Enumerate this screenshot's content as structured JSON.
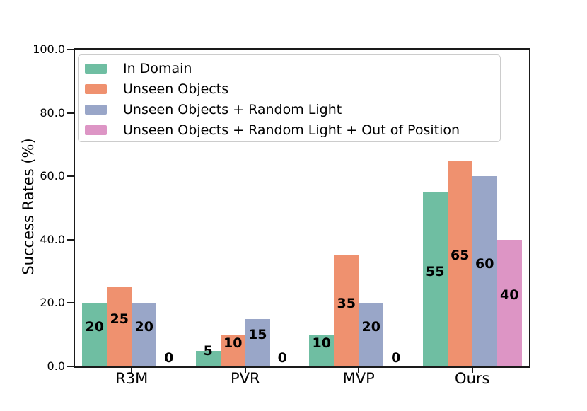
{
  "figure": {
    "background": "#ffffff",
    "axis_color": "#1a1a1a"
  },
  "chart_data": {
    "type": "bar",
    "title": "",
    "xlabel": "",
    "ylabel": "Success Rates (%)",
    "categories": [
      "R3M",
      "PVR",
      "MVP",
      "Ours"
    ],
    "series": [
      {
        "name": "In Domain",
        "color": "#6fbea2",
        "values": [
          20,
          5,
          10,
          55
        ]
      },
      {
        "name": "Unseen Objects",
        "color": "#ef916f",
        "values": [
          25,
          10,
          35,
          65
        ]
      },
      {
        "name": "Unseen Objects + Random Light",
        "color": "#99a6c8",
        "values": [
          20,
          15,
          20,
          60
        ]
      },
      {
        "name": "Unseen Objects + Random Light + Out of Position",
        "color": "#dd95c5",
        "values": [
          0,
          0,
          0,
          40
        ]
      }
    ],
    "bar_value_labels": [
      [
        "20",
        "5",
        "10",
        "55"
      ],
      [
        "25",
        "10",
        "35",
        "65"
      ],
      [
        "20",
        "15",
        "20",
        "60"
      ],
      [
        "0",
        "0",
        "0",
        "40"
      ]
    ],
    "ylim": [
      0,
      100
    ],
    "yticks": [
      0,
      20,
      40,
      60,
      80,
      100
    ],
    "ytick_labels": [
      "0.0",
      "20.0",
      "40.0",
      "60.0",
      "80.0",
      "100.0"
    ],
    "grid": false,
    "legend_position": "upper left"
  }
}
